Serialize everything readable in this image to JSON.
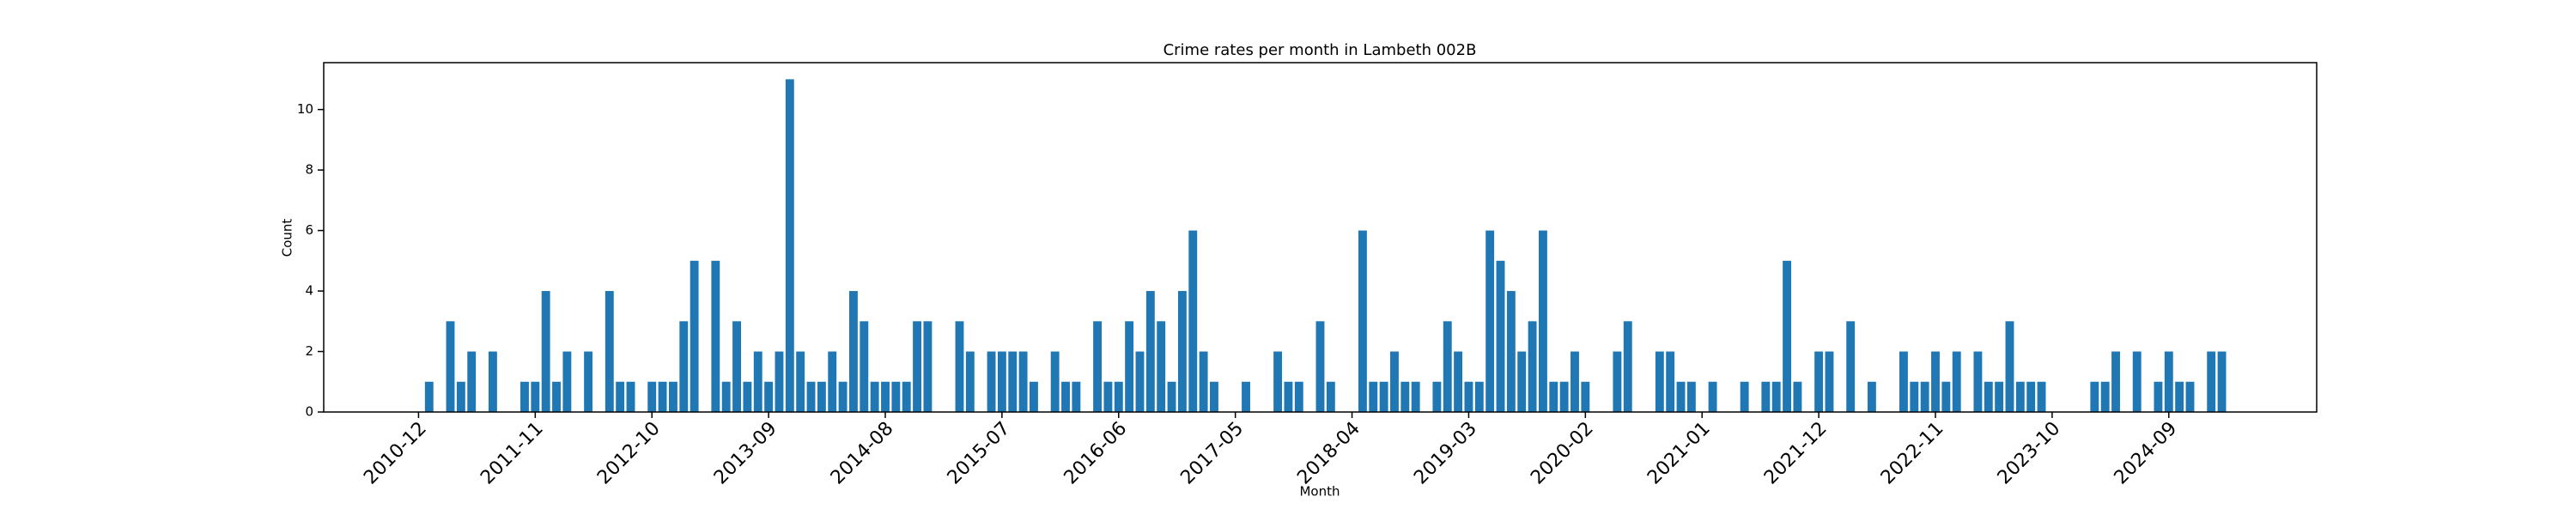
{
  "chart_data": {
    "type": "bar",
    "title": "Crime rates per month in Lambeth 002B",
    "x_label": "Month",
    "y_label": "Count",
    "categories": [
      "2010-12",
      null,
      null,
      null,
      null,
      null,
      null,
      null,
      null,
      null,
      null,
      "2011-11",
      null,
      null,
      null,
      null,
      null,
      null,
      null,
      null,
      null,
      null,
      "2012-10",
      null,
      null,
      null,
      null,
      null,
      null,
      null,
      null,
      null,
      null,
      "2013-09",
      null,
      null,
      null,
      null,
      null,
      null,
      null,
      null,
      null,
      null,
      "2014-08",
      null,
      null,
      null,
      null,
      null,
      null,
      null,
      null,
      null,
      null,
      "2015-07",
      null,
      null,
      null,
      null,
      null,
      null,
      null,
      null,
      null,
      null,
      "2016-06",
      null,
      null,
      null,
      null,
      null,
      null,
      null,
      null,
      null,
      null,
      "2017-05",
      null,
      null,
      null,
      null,
      null,
      null,
      null,
      null,
      null,
      null,
      "2018-04",
      null,
      null,
      null,
      null,
      null,
      null,
      null,
      null,
      null,
      null,
      "2019-03",
      null,
      null,
      null,
      null,
      null,
      null,
      null,
      null,
      null,
      null,
      "2020-02",
      null,
      null,
      null,
      null,
      null,
      null,
      null,
      null,
      null,
      null,
      "2021-01",
      null,
      null,
      null,
      null,
      null,
      null,
      null,
      null,
      null,
      null,
      "2021-12",
      null,
      null,
      null,
      null,
      null,
      null,
      null,
      null,
      null,
      null,
      "2022-11",
      null,
      null,
      null,
      null,
      null,
      null,
      null,
      null,
      null,
      null,
      "2023-10",
      null,
      null,
      null,
      null,
      null,
      null,
      null,
      null,
      null,
      null,
      "2024-09",
      null,
      null,
      null,
      null,
      null
    ],
    "values": [
      0,
      1,
      0,
      3,
      1,
      2,
      0,
      2,
      0,
      0,
      1,
      1,
      4,
      1,
      2,
      0,
      2,
      0,
      4,
      1,
      1,
      0,
      1,
      1,
      1,
      3,
      5,
      0,
      5,
      1,
      3,
      1,
      2,
      1,
      2,
      11,
      2,
      1,
      1,
      2,
      1,
      4,
      3,
      1,
      1,
      1,
      1,
      3,
      3,
      0,
      0,
      3,
      2,
      0,
      2,
      2,
      2,
      2,
      1,
      0,
      2,
      1,
      1,
      0,
      3,
      1,
      1,
      3,
      2,
      4,
      3,
      1,
      4,
      6,
      2,
      1,
      0,
      0,
      1,
      0,
      0,
      2,
      1,
      1,
      0,
      3,
      1,
      0,
      0,
      6,
      1,
      1,
      2,
      1,
      1,
      0,
      1,
      3,
      2,
      1,
      1,
      6,
      5,
      4,
      2,
      3,
      6,
      1,
      1,
      2,
      1,
      0,
      0,
      2,
      3,
      0,
      0,
      2,
      2,
      1,
      1,
      0,
      1,
      0,
      0,
      1,
      0,
      1,
      1,
      5,
      1,
      0,
      2,
      2,
      0,
      3,
      0,
      1,
      0,
      0,
      2,
      1,
      1,
      2,
      1,
      2,
      0,
      2,
      1,
      1,
      3,
      1,
      1,
      1,
      0,
      0,
      0,
      0,
      1,
      1,
      2,
      0,
      2,
      0,
      1,
      2,
      1,
      1,
      0,
      2,
      2
    ],
    "color": "#1f77b4",
    "ylim": [
      0,
      11.55
    ],
    "yticks": [
      0,
      2,
      4,
      6,
      8,
      10
    ]
  }
}
